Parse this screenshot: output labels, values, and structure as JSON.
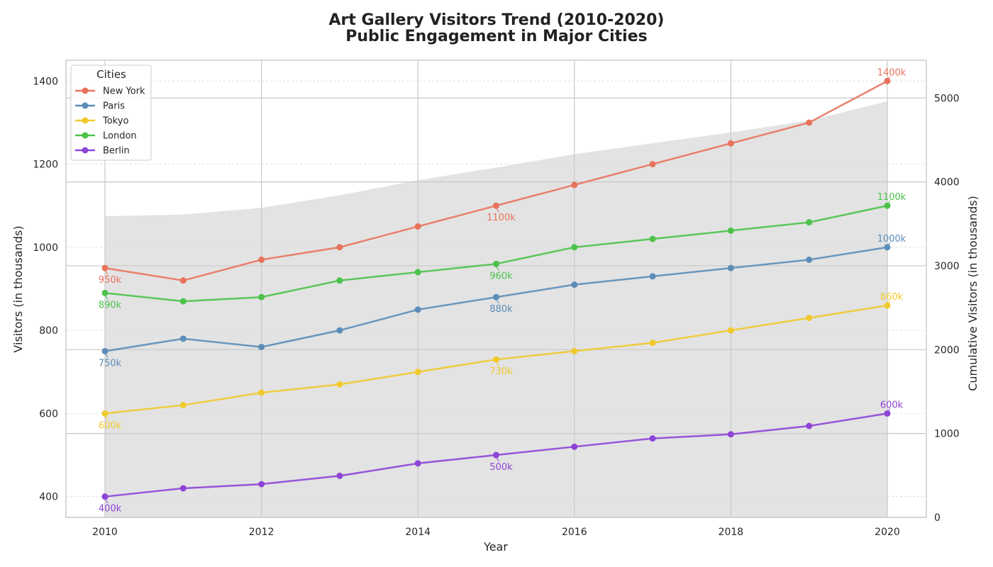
{
  "chart_data": {
    "type": "line",
    "title": "Art Gallery Visitors Trend (2010-2020)",
    "subtitle": "Public Engagement in Major Cities",
    "xlabel": "Year",
    "ylabel": "Visitors (in thousands)",
    "y2label": "Cumulative Visitors (in thousands)",
    "x": [
      2010,
      2011,
      2012,
      2013,
      2014,
      2015,
      2016,
      2017,
      2018,
      2019,
      2020
    ],
    "xticks": [
      2010,
      2012,
      2014,
      2016,
      2018,
      2020
    ],
    "ylim": [
      350,
      1450
    ],
    "yticks": [
      400,
      600,
      800,
      1000,
      1200,
      1400
    ],
    "y2lim": [
      0,
      5450
    ],
    "y2ticks": [
      0,
      1000,
      2000,
      3000,
      4000,
      5000
    ],
    "grid": true,
    "legend_title": "Cities",
    "legend_position": "top-left",
    "annotation_suffix": "k",
    "series": [
      {
        "name": "New York",
        "color": "#e8735c",
        "values": [
          950,
          920,
          970,
          1000,
          1050,
          1100,
          1150,
          1200,
          1250,
          1300,
          1400
        ]
      },
      {
        "name": "Paris",
        "color": "#5b8db8",
        "values": [
          750,
          780,
          760,
          800,
          850,
          880,
          910,
          930,
          950,
          970,
          1000
        ]
      },
      {
        "name": "Tokyo",
        "color": "#f0c92e",
        "values": [
          600,
          620,
          650,
          670,
          700,
          730,
          750,
          770,
          800,
          830,
          860
        ]
      },
      {
        "name": "London",
        "color": "#4cc24a",
        "values": [
          890,
          870,
          880,
          920,
          940,
          960,
          1000,
          1020,
          1040,
          1060,
          1100
        ]
      },
      {
        "name": "Berlin",
        "color": "#8e44d6",
        "values": [
          400,
          420,
          430,
          450,
          480,
          500,
          520,
          540,
          550,
          570,
          600
        ]
      }
    ],
    "annotated_indices": [
      0,
      5,
      10
    ],
    "cumulative_area": {
      "color": "#e3e3e3",
      "values": [
        3590,
        3610,
        3690,
        3840,
        4020,
        4170,
        4330,
        4460,
        4590,
        4730,
        4960
      ]
    }
  }
}
